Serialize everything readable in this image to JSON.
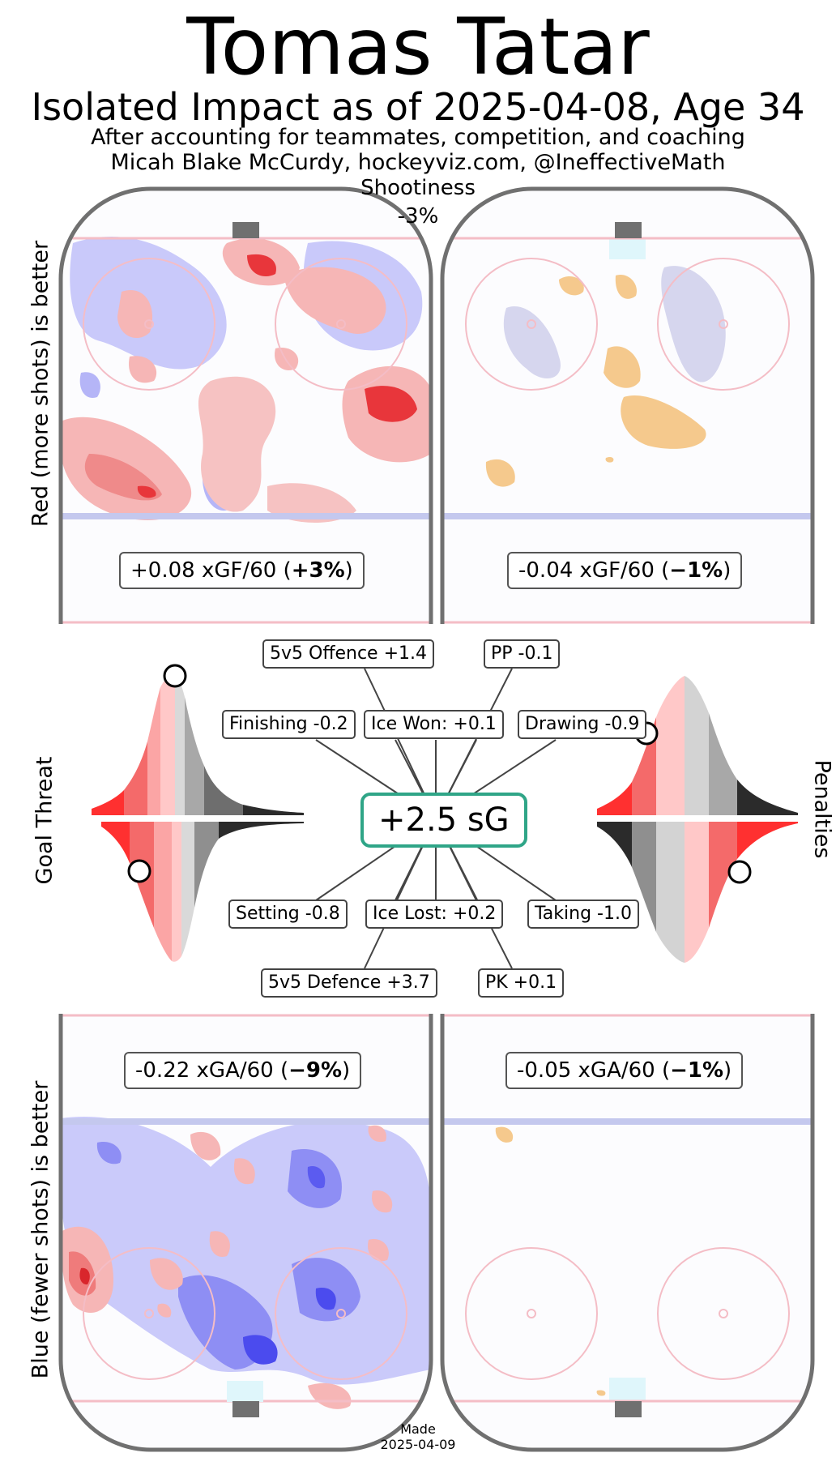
{
  "header": {
    "title": "Tomas Tatar",
    "subtitle": "Isolated Impact as of 2025-04-08, Age 34",
    "subtitle2": "After accounting for teammates, competition, and coaching",
    "credit": "Micah Blake McCurdy, hockeyviz.com, @IneffectiveMath",
    "shootiness_label": "Shootiness",
    "shootiness_value": "-3%"
  },
  "axis_labels": {
    "top_left": "Red (more shots) is better",
    "bottom_left": "Blue (fewer shots) is better",
    "goal_threat": "Goal Threat",
    "penalties": "Penalties"
  },
  "offence": {
    "even_strength": {
      "prefix": "+0.08 xGF/60 (",
      "pct": "+3%",
      "suffix": ")"
    },
    "power_play": {
      "prefix": "-0.04 xGF/60 (",
      "pct": "−1%",
      "suffix": ")"
    }
  },
  "defence": {
    "even_strength": {
      "prefix": "-0.22 xGA/60 (",
      "pct": "−9%",
      "suffix": ")"
    },
    "penalty_kill": {
      "prefix": "-0.05 xGA/60 (",
      "pct": "−1%",
      "suffix": ")"
    }
  },
  "total": "+2.5 sG",
  "chart_data": {
    "type": "heatmap",
    "components": [
      {
        "label": "5v5 Offence +1.4"
      },
      {
        "label": "PP -0.1"
      },
      {
        "label": "Finishing -0.2"
      },
      {
        "label": "Ice Won: +0.1"
      },
      {
        "label": "Drawing -0.9"
      },
      {
        "label": "Setting -0.8"
      },
      {
        "label": "Ice Lost: +0.2"
      },
      {
        "label": "Taking -1.0"
      },
      {
        "label": "5v5 Defence +3.7"
      },
      {
        "label": "PK +0.1"
      }
    ],
    "colors": {
      "better_offence": "#e8363b",
      "better_defence": "#3b3bf2",
      "pp": "#f5c98d",
      "accent": "#2fa587"
    }
  },
  "footer": {
    "made_label": "Made",
    "made_date": "2025-04-09"
  }
}
